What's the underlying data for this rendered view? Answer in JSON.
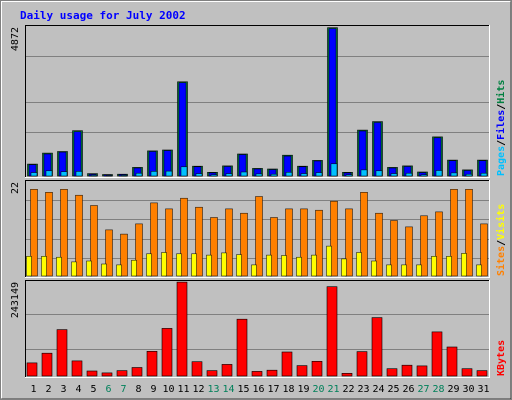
{
  "chart_data": {
    "type": "bar",
    "title": "Daily usage for July 2002",
    "days": [
      "1",
      "2",
      "3",
      "4",
      "5",
      "6",
      "7",
      "8",
      "9",
      "10",
      "11",
      "12",
      "13",
      "14",
      "15",
      "16",
      "17",
      "18",
      "19",
      "20",
      "21",
      "22",
      "23",
      "24",
      "25",
      "26",
      "27",
      "28",
      "29",
      "30",
      "31"
    ],
    "weekend_days": [
      "6",
      "7",
      "13",
      "14",
      "20",
      "21",
      "27",
      "28"
    ],
    "panels": [
      {
        "id": "hits",
        "ymax": 4872,
        "ymax_label": "4872",
        "right_label_parts": [
          "Pages",
          "/",
          "Files",
          "/",
          "Hits"
        ],
        "series": [
          {
            "name": "Hits",
            "color": "#008040",
            "values": [
              390,
              750,
              800,
              1480,
              80,
              50,
              60,
              280,
              820,
              850,
              3080,
              320,
              120,
              330,
              720,
              250,
              230,
              680,
              320,
              510,
              4850,
              120,
              1500,
              1780,
              280,
              330,
              130,
              1280,
              520,
              200,
              520
            ]
          },
          {
            "name": "Files",
            "color": "#0000ff",
            "values": [
              370,
              720,
              780,
              1450,
              60,
              40,
              50,
              260,
              800,
              830,
              3050,
              300,
              100,
              310,
              700,
              230,
              210,
              650,
              300,
              490,
              4820,
              100,
              1470,
              1750,
              260,
              310,
              110,
              1250,
              500,
              180,
              500
            ]
          },
          {
            "name": "Pages",
            "color": "#00c0ff",
            "values": [
              110,
              170,
              140,
              150,
              30,
              20,
              25,
              90,
              150,
              160,
              300,
              80,
              40,
              80,
              130,
              70,
              60,
              120,
              80,
              110,
              400,
              40,
              200,
              170,
              80,
              90,
              40,
              180,
              100,
              60,
              90
            ]
          }
        ]
      },
      {
        "id": "visits",
        "ymax": 22,
        "ymax_label": "22",
        "right_label_parts": [
          "Sites",
          "/",
          "Visits"
        ],
        "series": [
          {
            "name": "Sites",
            "color": "#ff8000",
            "values": [
              20.3,
              19.6,
              20.3,
              18.9,
              16.5,
              10.8,
              9.8,
              12.2,
              17.1,
              15.7,
              18.2,
              16.1,
              13.7,
              15.7,
              14.7,
              18.6,
              13.7,
              15.7,
              15.7,
              15.4,
              17.5,
              15.7,
              19.6,
              14.7,
              13.0,
              11.5,
              14.1,
              15.0,
              20.3,
              20.3,
              12.2
            ]
          },
          {
            "name": "Visits",
            "color": "#ffff00",
            "values": [
              4.6,
              4.6,
              4.4,
              3.3,
              3.5,
              2.8,
              2.6,
              3.7,
              5.2,
              5.5,
              5.2,
              5.2,
              4.9,
              5.4,
              5.0,
              2.6,
              4.9,
              4.8,
              4.4,
              4.9,
              7.0,
              4.0,
              5.5,
              3.5,
              2.6,
              2.6,
              2.6,
              4.6,
              4.6,
              5.3,
              2.6
            ]
          }
        ]
      },
      {
        "id": "kbytes",
        "ymax": 243149,
        "ymax_label": "243149",
        "right_label_parts": [
          "KBytes"
        ],
        "series": [
          {
            "name": "KBytes",
            "color": "#ff0000",
            "values": [
              34000,
              59000,
              120000,
              39000,
              13000,
              8000,
              14000,
              22000,
              64000,
              123000,
              243000,
              37000,
              14000,
              30000,
              147000,
              12000,
              15000,
              62000,
              27000,
              38000,
              231000,
              7000,
              63000,
              151000,
              19000,
              28000,
              26000,
              114000,
              75000,
              19000,
              14000
            ]
          }
        ]
      }
    ]
  }
}
